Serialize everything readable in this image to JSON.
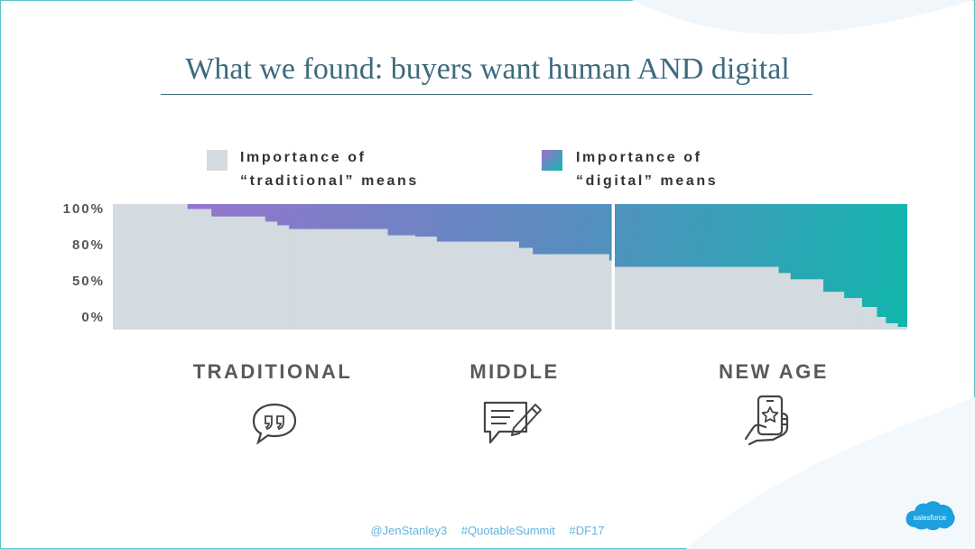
{
  "slide": {
    "title": "What we found: buyers want human AND digital",
    "legend": {
      "traditional": {
        "line1": "Importance of",
        "line2": "“traditional” means",
        "color": "#d3dae0"
      },
      "digital": {
        "line1": "Importance of",
        "line2": "“digital” means",
        "gradient_from": "#a070d0",
        "gradient_to": "#10b6ac"
      }
    },
    "footer": {
      "handle": "@JenStanley3",
      "tag1": "#QuotableSummit",
      "tag2": "#DF17"
    },
    "brand_logo_text": "salesforce"
  },
  "chart_data": {
    "type": "area",
    "title": "",
    "xlabel": "",
    "ylabel": "",
    "yticks": [
      "100%",
      "80%",
      "50%",
      "0%"
    ],
    "segments": [
      {
        "name": "TRADITIONAL",
        "icon": "speech-bubble-quote-icon",
        "steps": [
          {
            "width": 0.25,
            "traditional": 100
          },
          {
            "width": 0.08,
            "traditional": 96
          },
          {
            "width": 0.18,
            "traditional": 90
          },
          {
            "width": 0.04,
            "traditional": 86
          },
          {
            "width": 0.04,
            "traditional": 83
          },
          {
            "width": 0.33,
            "traditional": 80
          },
          {
            "width": 0.12,
            "traditional": 75
          }
        ]
      },
      {
        "name": "MIDDLE",
        "icon": "pen-and-paper-icon",
        "steps": [
          {
            "width": 0.11,
            "traditional": 74
          },
          {
            "width": 0.42,
            "traditional": 70
          },
          {
            "width": 0.07,
            "traditional": 65
          },
          {
            "width": 0.39,
            "traditional": 60
          },
          {
            "width": 0.01,
            "traditional": 55
          }
        ]
      },
      {
        "name": "NEW AGE",
        "icon": "mobile-star-icon",
        "steps": [
          {
            "width": 0.55,
            "traditional": 50
          },
          {
            "width": 0.04,
            "traditional": 45
          },
          {
            "width": 0.11,
            "traditional": 40
          },
          {
            "width": 0.07,
            "traditional": 30
          },
          {
            "width": 0.06,
            "traditional": 25
          },
          {
            "width": 0.05,
            "traditional": 18
          },
          {
            "width": 0.03,
            "traditional": 10
          },
          {
            "width": 0.04,
            "traditional": 5
          },
          {
            "width": 0.03,
            "traditional": 2
          }
        ]
      }
    ]
  }
}
